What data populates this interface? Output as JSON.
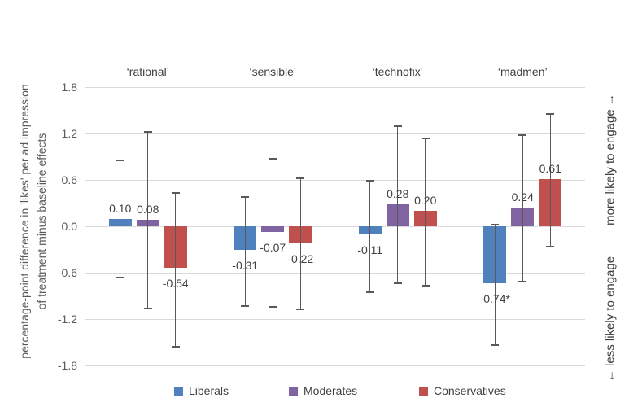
{
  "chart_data": {
    "type": "bar",
    "categories": [
      "‘rational’",
      "‘sensible’",
      "‘technofix’",
      "‘madmen’"
    ],
    "series": [
      {
        "name": "Liberals",
        "color": "#4F81BD",
        "values": [
          0.1,
          -0.31,
          -0.11,
          -0.74
        ],
        "data_labels": [
          "0.10",
          "-0.31",
          "-0.11",
          "-0.74*"
        ],
        "error_bars": [
          [
            -0.66,
            0.85
          ],
          [
            -1.03,
            0.38
          ],
          [
            -0.85,
            0.59
          ],
          [
            -1.54,
            0.02
          ]
        ]
      },
      {
        "name": "Moderates",
        "color": "#8064A2",
        "values": [
          0.08,
          -0.07,
          0.28,
          0.24
        ],
        "data_labels": [
          "0.08",
          "-0.07",
          "0.28",
          "0.24"
        ],
        "error_bars": [
          [
            -1.06,
            1.22
          ],
          [
            -1.04,
            0.87
          ],
          [
            -0.74,
            1.29
          ],
          [
            -0.72,
            1.18
          ]
        ]
      },
      {
        "name": "Conservatives",
        "color": "#C0504D",
        "values": [
          -0.54,
          -0.22,
          0.2,
          0.61
        ],
        "data_labels": [
          "-0.54",
          "-0.22",
          "0.20",
          "0.61"
        ],
        "error_bars": [
          [
            -1.56,
            0.43
          ],
          [
            -1.07,
            0.62
          ],
          [
            -0.77,
            1.14
          ],
          [
            -0.26,
            1.45
          ]
        ]
      }
    ],
    "ylabel_line1": "percentage-point difference in 'likes' per ad impression",
    "ylabel_line2": "of treatment minus baseline effects",
    "yticks": [
      "1.8",
      "1.2",
      "0.6",
      "0.0",
      "-0.6",
      "-1.2",
      "-1.8"
    ],
    "ylim": [
      -1.8,
      1.8
    ],
    "grid": true,
    "legend_position": "bottom",
    "annotations": {
      "right_top": "more likely to engage →",
      "right_bottom": "← less likely to engage"
    },
    "style_colors": {
      "gridline": "#D9D9D9",
      "error_bar": "#595959",
      "tick_text": "#595959",
      "category_text": "#404040",
      "data_label_text": "#404040",
      "annotation_text": "#404040"
    }
  }
}
